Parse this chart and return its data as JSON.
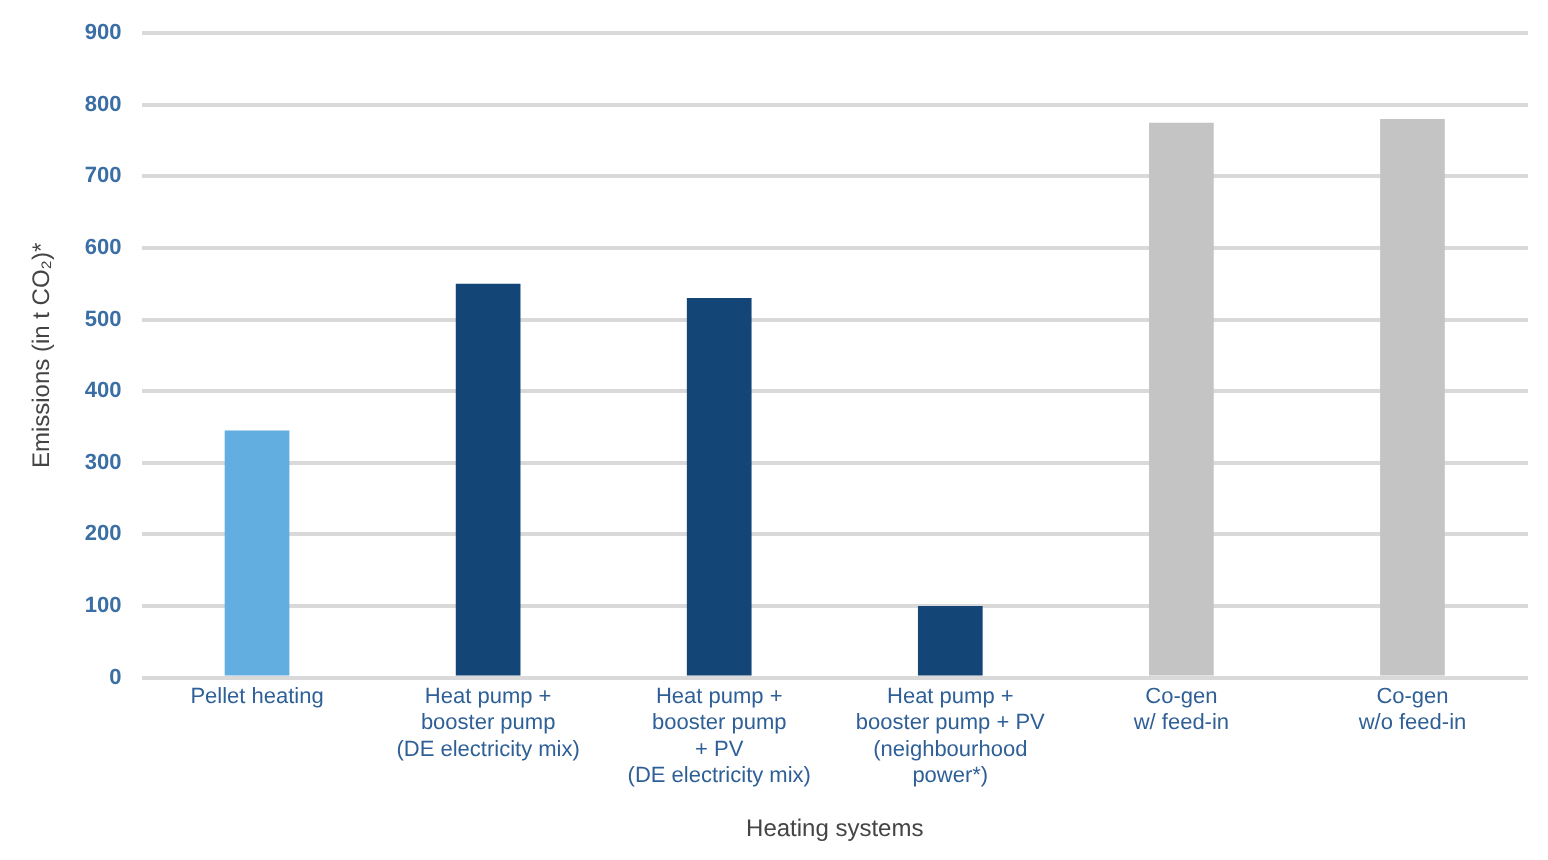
{
  "chart_data": {
    "type": "bar",
    "xlabel": "Heating systems",
    "ylabel": "Emissions (in t CO₂)*",
    "categories": [
      "Pellet heating",
      "Heat pump +\nbooster pump\n(DE electricity mix)",
      "Heat pump +\nbooster pump\n+ PV\n(DE electricity mix)",
      "Heat pump +\nbooster pump + PV\n(neighbourhood\npower*)",
      "Co-gen\nw/ feed-in",
      "Co-gen\nw/o feed-in"
    ],
    "values": [
      345,
      550,
      530,
      100,
      775,
      780
    ],
    "colors": [
      "#62aee0",
      "#134577",
      "#134577",
      "#134577",
      "#c4c4c4",
      "#c4c4c4"
    ],
    "ylim": [
      0,
      900
    ],
    "yticks": [
      0,
      100,
      200,
      300,
      400,
      500,
      600,
      700,
      800,
      900
    ],
    "grid": "y"
  }
}
